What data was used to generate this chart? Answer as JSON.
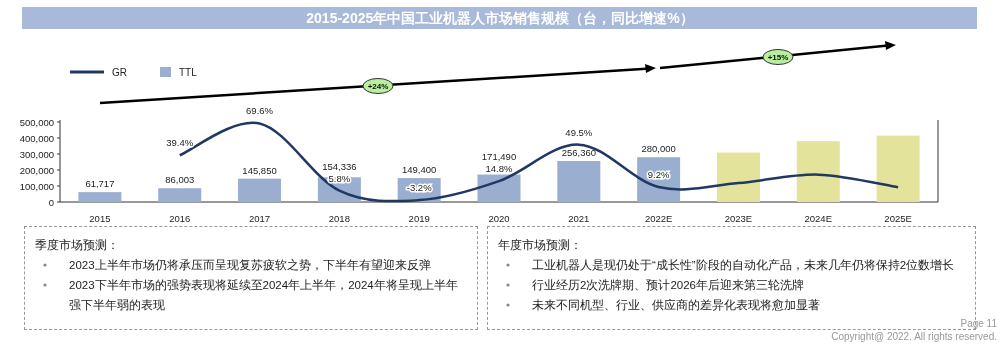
{
  "chart_data": {
    "type": "bar",
    "title": "2015-2025年中国工业机器人市场销售规模（台，同比增速%）",
    "categories": [
      "2015",
      "2016",
      "2017",
      "2018",
      "2019",
      "2020",
      "2021",
      "2022E",
      "2023E",
      "2024E",
      "2025E"
    ],
    "series": [
      {
        "name": "TTL",
        "type": "bar",
        "colors": [
          "#9aaed0",
          "#9aaed0",
          "#9aaed0",
          "#9aaed0",
          "#9aaed0",
          "#9aaed0",
          "#9aaed0",
          "#9aaed0",
          "#e3e39b",
          "#e3e39b",
          "#e3e39b"
        ],
        "values": [
          61717,
          86003,
          145850,
          154336,
          149400,
          171490,
          256360,
          280000,
          309000,
          380000,
          415000
        ],
        "value_labels": [
          "61,717",
          "86,003",
          "145,850",
          "154,336",
          "149,400",
          "171,490",
          "256,360",
          "280,000",
          null,
          null,
          null
        ]
      },
      {
        "name": "GR",
        "type": "line",
        "axis": "y2",
        "color": "#1f3864",
        "values": [
          null,
          39.4,
          69.6,
          5.8,
          -3.2,
          14.8,
          49.5,
          9.2,
          13,
          21,
          9
        ],
        "value_labels": [
          null,
          "39.4%",
          "69.6%",
          "5.8%",
          "-3.2%",
          "14.8%",
          "49.5%",
          "9.2%",
          null,
          null,
          null
        ]
      }
    ],
    "ylim": [
      0,
      500000
    ],
    "yticks": [
      0,
      {
        "value": 100000,
        "label": "100,000"
      },
      {
        "value": 200000,
        "label": "200,000"
      },
      {
        "value": 300000,
        "label": "300,000"
      },
      {
        "value": 400000,
        "label": "400,000"
      },
      {
        "value": 500000,
        "label": "500,000"
      }
    ],
    "y2lim": [
      -5,
      71
    ],
    "legend": "top left",
    "annotations": [
      "+24%",
      "+15%",
      "季度市场预测：",
      "2023上半年市场仍将承压而呈现复苏疲软之势，下半年有望迎来反弹",
      "2023下半年市场的强势表现将延续至2024年上半年，2024年将呈现上半年强下半年弱的表现",
      "年度市场预测：",
      "工业机器人是现仍处于“成长性”阶段的自动化产品，未来几年仍将保持2位数增长",
      "行业经历2次洗牌期、预计2026年后迎来第三轮洗牌",
      "未来不同机型、行业、供应商的差异化表现将愈加显著",
      "Page 11",
      "Copyright@ 2022. All rights reserved."
    ]
  }
}
